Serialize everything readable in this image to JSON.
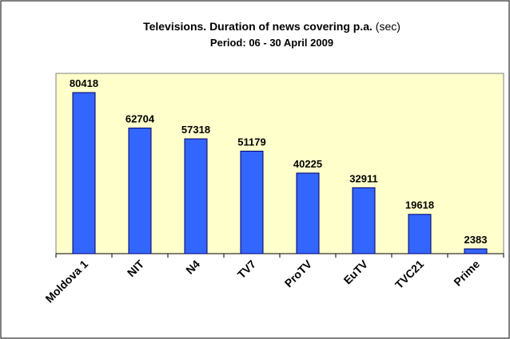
{
  "chart_data": {
    "type": "bar",
    "title": "Televisions. Duration of news covering p.a.",
    "title_unit": "(sec)",
    "subtitle": "Period: 06 - 30 April 2009",
    "categories": [
      "Moldova 1",
      "NIT",
      "N4",
      "TV7",
      "ProTV",
      "EuTV",
      "TVC21",
      "Prime"
    ],
    "values": [
      80418,
      62704,
      57318,
      51179,
      40225,
      32911,
      19618,
      2383
    ],
    "color": "#3366ff",
    "ylim": [
      0,
      90000
    ]
  }
}
